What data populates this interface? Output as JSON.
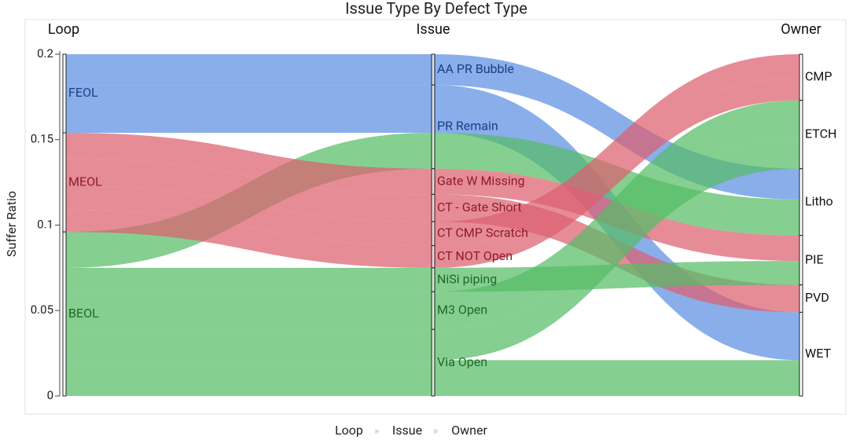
{
  "chart_data": {
    "type": "parcats",
    "title": "Issue Type By Defect Type",
    "ylabel": "Suffer Ratio",
    "ylim": [
      0,
      0.2
    ],
    "yticks": [
      0,
      0.05,
      0.1,
      0.15,
      0.2
    ],
    "dimensions": [
      {
        "name": "Loop",
        "categories": [
          "FEOL",
          "MEOL",
          "BEOL"
        ],
        "colors": [
          "#5b8fe2",
          "#dc5f6f",
          "#56bd67"
        ]
      },
      {
        "name": "Issue",
        "categories": [
          "AA PR Bubble",
          "PR Remain",
          "Gate W Missing",
          "CT - Gate Short",
          "CT CMP Scratch",
          "CT NOT Open",
          "NiSi piping",
          "M3 Open",
          "Via Open"
        ]
      },
      {
        "name": "Owner",
        "categories": [
          "CMP",
          "ETCH",
          "Litho",
          "PIE",
          "PVD",
          "WET"
        ]
      }
    ],
    "flows": [
      {
        "path": [
          "FEOL",
          "AA PR Bubble",
          "Litho"
        ],
        "value": 0.018
      },
      {
        "path": [
          "FEOL",
          "PR Remain",
          "WET"
        ],
        "value": 0.028
      },
      {
        "path": [
          "BEOL",
          "PR Remain",
          "Litho"
        ],
        "value": 0.021
      },
      {
        "path": [
          "MEOL",
          "Gate W Missing",
          "PIE"
        ],
        "value": 0.015
      },
      {
        "path": [
          "MEOL",
          "CT - Gate Short",
          "PVD"
        ],
        "value": 0.016
      },
      {
        "path": [
          "MEOL",
          "CT CMP Scratch",
          "CMP"
        ],
        "value": 0.014
      },
      {
        "path": [
          "MEOL",
          "CT NOT Open",
          "CMP"
        ],
        "value": 0.013
      },
      {
        "path": [
          "BEOL",
          "NiSi piping",
          "PIE"
        ],
        "value": 0.014
      },
      {
        "path": [
          "BEOL",
          "M3 Open",
          "ETCH"
        ],
        "value": 0.022
      },
      {
        "path": [
          "BEOL",
          "Via Open",
          "ETCH"
        ],
        "value": 0.018
      },
      {
        "path": [
          "BEOL",
          "Via Open",
          "WET"
        ],
        "value": 0.021
      }
    ]
  }
}
